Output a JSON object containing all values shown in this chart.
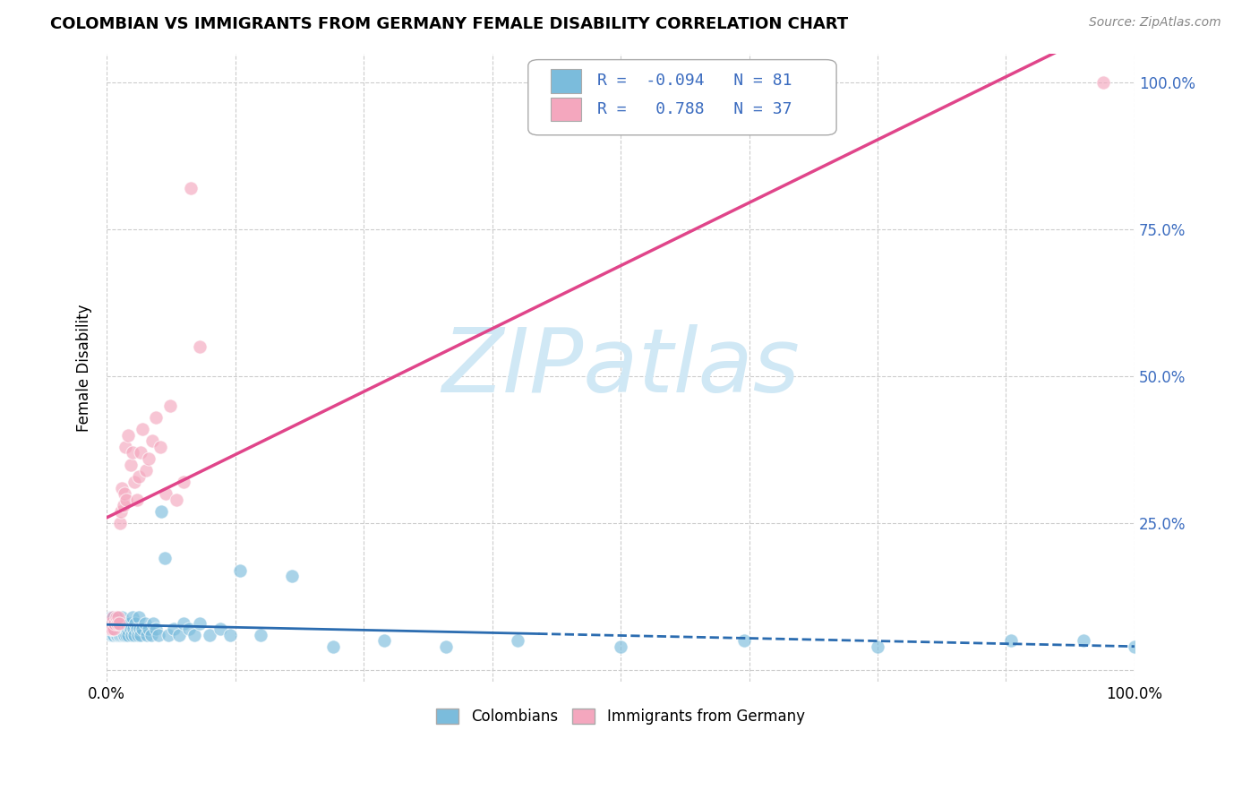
{
  "title": "COLOMBIAN VS IMMIGRANTS FROM GERMANY FEMALE DISABILITY CORRELATION CHART",
  "source": "Source: ZipAtlas.com",
  "ylabel": "Female Disability",
  "xlim": [
    0,
    1.0
  ],
  "ylim": [
    0,
    1.0
  ],
  "colombians_R": -0.094,
  "colombians_N": 81,
  "germany_R": 0.788,
  "germany_N": 37,
  "colombian_color": "#7bbcdc",
  "germany_color": "#f4a7be",
  "colombian_line_color": "#2b6cb0",
  "germany_line_color": "#e0458a",
  "watermark_color": "#d0e8f5",
  "legend_text_color": "#3a6bbf",
  "col_scatter_x": [
    0.002,
    0.003,
    0.004,
    0.004,
    0.005,
    0.005,
    0.006,
    0.006,
    0.007,
    0.007,
    0.007,
    0.008,
    0.008,
    0.009,
    0.009,
    0.01,
    0.01,
    0.011,
    0.011,
    0.012,
    0.012,
    0.013,
    0.013,
    0.014,
    0.014,
    0.015,
    0.015,
    0.016,
    0.016,
    0.017,
    0.017,
    0.018,
    0.018,
    0.019,
    0.02,
    0.021,
    0.022,
    0.023,
    0.024,
    0.025,
    0.026,
    0.027,
    0.028,
    0.029,
    0.03,
    0.031,
    0.032,
    0.033,
    0.035,
    0.037,
    0.039,
    0.041,
    0.043,
    0.045,
    0.048,
    0.05,
    0.053,
    0.056,
    0.06,
    0.065,
    0.07,
    0.075,
    0.08,
    0.085,
    0.09,
    0.1,
    0.11,
    0.12,
    0.13,
    0.15,
    0.18,
    0.22,
    0.27,
    0.33,
    0.4,
    0.5,
    0.62,
    0.75,
    0.88,
    1.0,
    0.95
  ],
  "col_scatter_y": [
    0.08,
    0.07,
    0.09,
    0.06,
    0.08,
    0.07,
    0.06,
    0.09,
    0.07,
    0.08,
    0.06,
    0.07,
    0.08,
    0.06,
    0.09,
    0.07,
    0.06,
    0.08,
    0.07,
    0.06,
    0.08,
    0.07,
    0.06,
    0.08,
    0.07,
    0.06,
    0.09,
    0.07,
    0.06,
    0.08,
    0.06,
    0.07,
    0.08,
    0.06,
    0.07,
    0.06,
    0.08,
    0.07,
    0.06,
    0.09,
    0.07,
    0.06,
    0.08,
    0.07,
    0.06,
    0.09,
    0.07,
    0.06,
    0.07,
    0.08,
    0.06,
    0.07,
    0.06,
    0.08,
    0.07,
    0.06,
    0.27,
    0.19,
    0.06,
    0.07,
    0.06,
    0.08,
    0.07,
    0.06,
    0.08,
    0.06,
    0.07,
    0.06,
    0.17,
    0.06,
    0.16,
    0.04,
    0.05,
    0.04,
    0.05,
    0.04,
    0.05,
    0.04,
    0.05,
    0.04,
    0.05
  ],
  "ger_scatter_x": [
    0.003,
    0.004,
    0.005,
    0.006,
    0.007,
    0.008,
    0.009,
    0.01,
    0.011,
    0.012,
    0.013,
    0.014,
    0.015,
    0.016,
    0.017,
    0.018,
    0.019,
    0.021,
    0.023,
    0.025,
    0.027,
    0.029,
    0.031,
    0.033,
    0.035,
    0.038,
    0.041,
    0.044,
    0.048,
    0.052,
    0.057,
    0.062,
    0.068,
    0.075,
    0.082,
    0.09,
    0.97
  ],
  "ger_scatter_y": [
    0.07,
    0.08,
    0.07,
    0.09,
    0.07,
    0.08,
    0.09,
    0.08,
    0.09,
    0.08,
    0.25,
    0.27,
    0.31,
    0.28,
    0.3,
    0.38,
    0.29,
    0.4,
    0.35,
    0.37,
    0.32,
    0.29,
    0.33,
    0.37,
    0.41,
    0.34,
    0.36,
    0.39,
    0.43,
    0.38,
    0.3,
    0.45,
    0.29,
    0.32,
    0.82,
    0.55,
    1.0
  ]
}
